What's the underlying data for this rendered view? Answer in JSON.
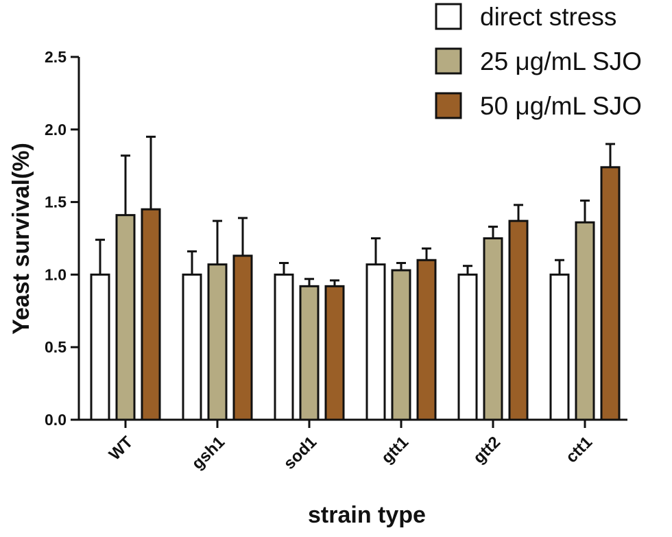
{
  "chart_data": {
    "type": "bar",
    "title": "",
    "xlabel": "strain type",
    "ylabel": "Yeast survival(%)",
    "ylim": [
      0,
      2.5
    ],
    "yticks": [
      0.0,
      0.5,
      1.0,
      1.5,
      2.0,
      2.5
    ],
    "ytick_labels": [
      "0.0",
      "0.5",
      "1.0",
      "1.5",
      "2.0",
      "2.5"
    ],
    "categories": [
      "WT",
      "gsh1",
      "sod1",
      "gtt1",
      "gtt2",
      "ctt1"
    ],
    "legend_position": "top-right",
    "grid": false,
    "series": [
      {
        "name": "direct stress",
        "color": "#ffffff",
        "values": [
          1.0,
          1.0,
          1.0,
          1.07,
          1.0,
          1.0
        ],
        "errors": [
          0.24,
          0.16,
          0.08,
          0.18,
          0.06,
          0.1
        ]
      },
      {
        "name": "25 μg/mL SJO",
        "color": "#b5ab82",
        "values": [
          1.41,
          1.07,
          0.92,
          1.03,
          1.25,
          1.36
        ],
        "errors": [
          0.41,
          0.3,
          0.05,
          0.05,
          0.08,
          0.15
        ]
      },
      {
        "name": "50 μg/mL SJO",
        "color": "#9a5f27",
        "values": [
          1.45,
          1.13,
          0.92,
          1.1,
          1.37,
          1.74
        ],
        "errors": [
          0.5,
          0.26,
          0.04,
          0.08,
          0.11,
          0.16
        ]
      }
    ]
  }
}
